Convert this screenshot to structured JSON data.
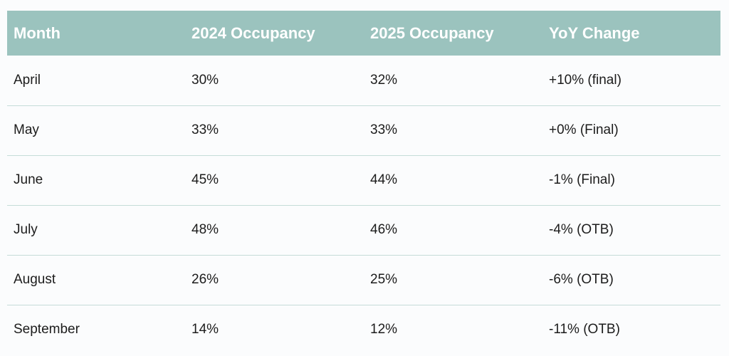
{
  "table": {
    "headers": [
      "Month",
      "2024 Occupancy",
      "2025 Occupancy",
      "YoY Change"
    ],
    "rows": [
      [
        "April",
        "30%",
        "32%",
        "+10% (final)"
      ],
      [
        "May",
        "33%",
        "33%",
        "+0% (Final)"
      ],
      [
        "June",
        "45%",
        "44%",
        "-1% (Final)"
      ],
      [
        "July",
        "48%",
        "46%",
        "-4% (OTB)"
      ],
      [
        "August",
        "26%",
        "25%",
        "-6% (OTB)"
      ],
      [
        "September",
        "14%",
        "12%",
        "-11% (OTB)"
      ]
    ]
  },
  "colors": {
    "header_background": "#9bc3be",
    "header_text": "#ffffff",
    "row_divider": "#c5dcd8",
    "body_text": "#1c1c1c"
  }
}
